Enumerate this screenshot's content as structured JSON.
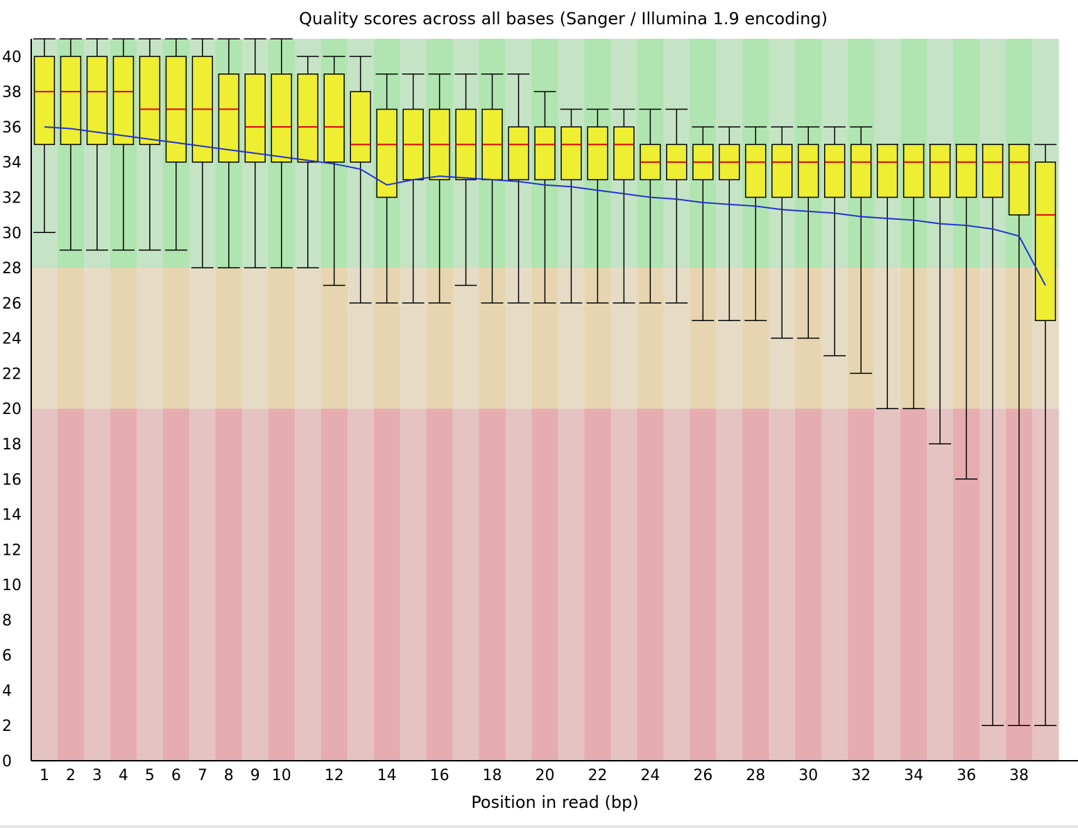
{
  "chart_data": {
    "type": "box",
    "title": "Quality scores across all bases (Sanger / Illumina 1.9 encoding)",
    "xlabel": "Position in read (bp)",
    "ylabel": "",
    "ylim": [
      0,
      41
    ],
    "yticks": [
      0,
      2,
      4,
      6,
      8,
      10,
      12,
      14,
      16,
      18,
      20,
      22,
      24,
      26,
      28,
      30,
      32,
      34,
      36,
      38,
      40
    ],
    "xtick_labels": [
      "1",
      "2",
      "3",
      "4",
      "5",
      "6",
      "7",
      "8",
      "9",
      "10",
      "",
      "12",
      "",
      "14",
      "",
      "16",
      "",
      "18",
      "",
      "20",
      "",
      "22",
      "",
      "24",
      "",
      "26",
      "",
      "28",
      "",
      "30",
      "",
      "32",
      "",
      "34",
      "",
      "36",
      "",
      "38",
      ""
    ],
    "zones": [
      {
        "name": "good",
        "from": 28,
        "to": 41,
        "colors": [
          "#c5e3c5",
          "#b0e4b0"
        ]
      },
      {
        "name": "reasonable",
        "from": 20,
        "to": 28,
        "colors": [
          "#e6dcc6",
          "#e6d5b0"
        ]
      },
      {
        "name": "poor",
        "from": 0,
        "to": 20,
        "colors": [
          "#e6c3c3",
          "#e6adb0"
        ]
      }
    ],
    "colors": {
      "box": "#eeee33",
      "median": "#dd0000",
      "mean": "#2233cc",
      "whisker": "#000000"
    },
    "positions": [
      1,
      2,
      3,
      4,
      5,
      6,
      7,
      8,
      9,
      10,
      11,
      12,
      13,
      14,
      15,
      16,
      17,
      18,
      19,
      20,
      21,
      22,
      23,
      24,
      25,
      26,
      27,
      28,
      29,
      30,
      31,
      32,
      33,
      34,
      35,
      36,
      37,
      38,
      39
    ],
    "whisker_low": [
      30,
      29,
      29,
      29,
      29,
      29,
      28,
      28,
      28,
      28,
      28,
      27,
      26,
      26,
      26,
      26,
      27,
      26,
      26,
      26,
      26,
      26,
      26,
      26,
      26,
      25,
      25,
      25,
      24,
      24,
      23,
      22,
      20,
      20,
      18,
      16,
      2,
      2,
      2
    ],
    "q1": [
      35,
      35,
      35,
      35,
      35,
      34,
      34,
      34,
      34,
      34,
      34,
      34,
      34,
      32,
      33,
      33,
      33,
      33,
      33,
      33,
      33,
      33,
      33,
      33,
      33,
      33,
      33,
      32,
      32,
      32,
      32,
      32,
      32,
      32,
      32,
      32,
      32,
      31,
      25
    ],
    "median": [
      38,
      38,
      38,
      38,
      37,
      37,
      37,
      37,
      36,
      36,
      36,
      36,
      35,
      35,
      35,
      35,
      35,
      35,
      35,
      35,
      35,
      35,
      35,
      34,
      34,
      34,
      34,
      34,
      34,
      34,
      34,
      34,
      34,
      34,
      34,
      34,
      34,
      34,
      31
    ],
    "q3": [
      40,
      40,
      40,
      40,
      40,
      40,
      40,
      39,
      39,
      39,
      39,
      39,
      38,
      37,
      37,
      37,
      37,
      37,
      36,
      36,
      36,
      36,
      36,
      35,
      35,
      35,
      35,
      35,
      35,
      35,
      35,
      35,
      35,
      35,
      35,
      35,
      35,
      35,
      34
    ],
    "whisker_high": [
      41,
      41,
      41,
      41,
      41,
      41,
      41,
      41,
      41,
      41,
      40,
      40,
      40,
      39,
      39,
      39,
      39,
      39,
      39,
      38,
      37,
      37,
      37,
      37,
      37,
      36,
      36,
      36,
      36,
      36,
      36,
      36,
      35,
      35,
      35,
      35,
      35,
      35,
      35
    ],
    "mean": [
      36,
      35.9,
      35.7,
      35.5,
      35.3,
      35.1,
      34.9,
      34.7,
      34.5,
      34.3,
      34.1,
      33.9,
      33.6,
      32.7,
      33.0,
      33.2,
      33.1,
      33.0,
      32.9,
      32.7,
      32.6,
      32.4,
      32.2,
      32.0,
      31.9,
      31.7,
      31.6,
      31.5,
      31.3,
      31.2,
      31.1,
      30.9,
      30.8,
      30.7,
      30.5,
      30.4,
      30.2,
      29.8,
      27.0
    ]
  }
}
